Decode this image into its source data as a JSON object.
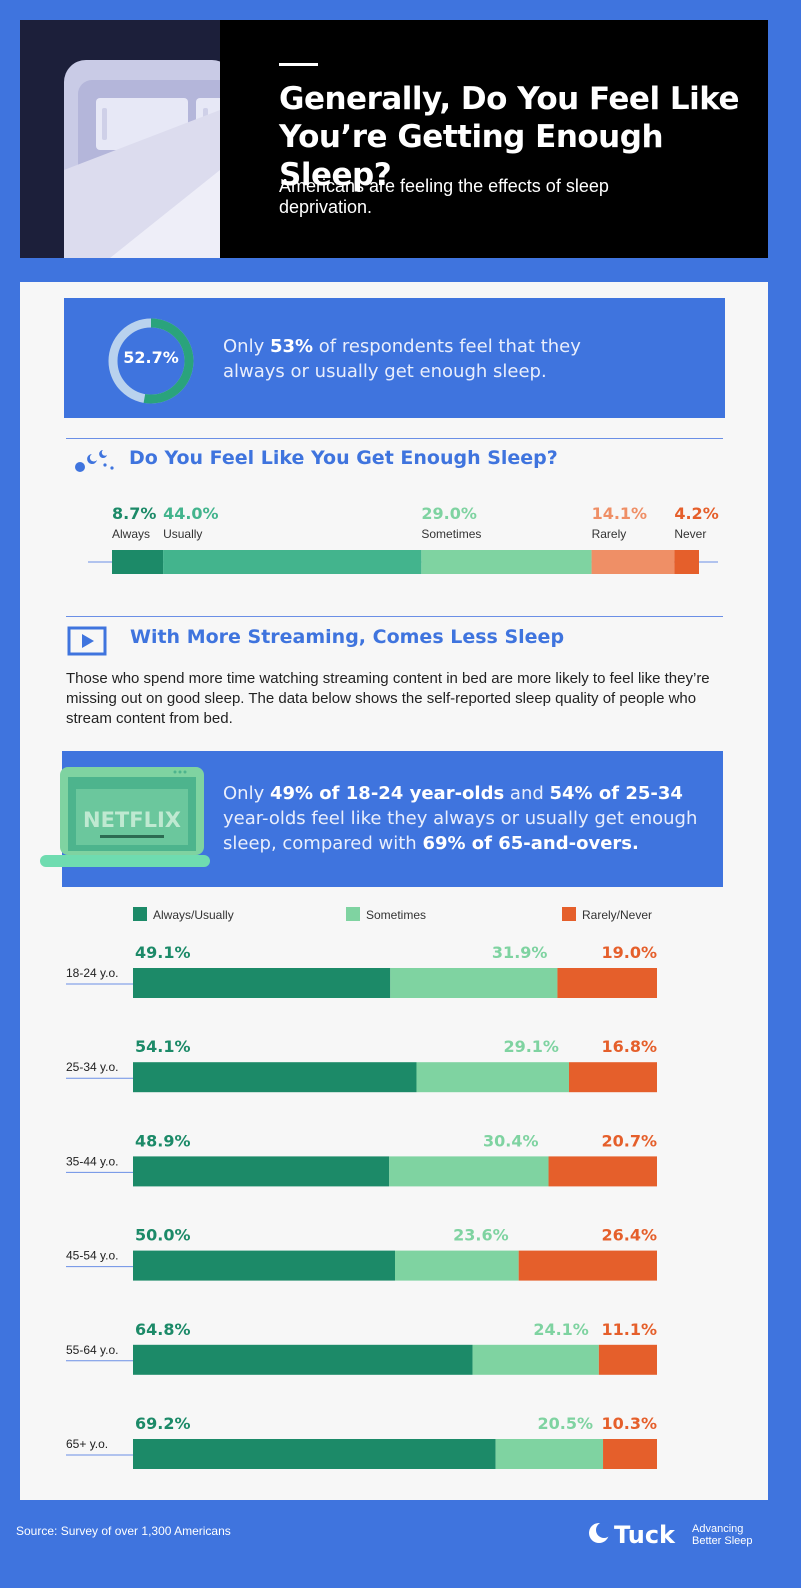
{
  "header": {
    "title_line1": "Generally, Do You Feel Like",
    "title_line2": "You’re Getting Enough Sleep?",
    "subtitle": "Americans are feeling the effects of sleep deprivation."
  },
  "callout1": {
    "donut_value": "52.7%",
    "donut_fraction": 0.527,
    "text_a": "Only ",
    "text_b": "53%",
    "text_c": " of respondents feel that they always or usually get enough sleep."
  },
  "section1": {
    "title": "Do You Feel Like You Get Enough Sleep?"
  },
  "section2": {
    "title": "With More Streaming, Comes Less Sleep",
    "body": "Those who spend more time watching streaming content in bed are more likely to feel like they’re missing out on good sleep. The data below shows the self-reported sleep quality of people who stream content from bed."
  },
  "callout2": {
    "logo_text": "NETFLIX",
    "p1": "Only ",
    "p2": "49% of 18-24 year-olds",
    "p3": " and ",
    "p4": "54% of 25-34",
    "p5": " year-olds feel like they always or usually get enough sleep, compared with ",
    "p6": "69% of 65-and-overs."
  },
  "chart_data": [
    {
      "type": "bar",
      "title": "Do You Feel Like You Get Enough Sleep?",
      "stacked": true,
      "orientation": "horizontal",
      "categories": [
        "Always",
        "Usually",
        "Sometimes",
        "Rarely",
        "Never"
      ],
      "values": [
        8.7,
        44.0,
        29.0,
        14.1,
        4.2
      ],
      "labels": [
        "8.7%",
        "44.0%",
        "29.0%",
        "14.1%",
        "4.2%"
      ],
      "colors": [
        "#1c8a68",
        "#43b48d",
        "#7fd3a1",
        "#ef8f66",
        "#e55f2b"
      ]
    },
    {
      "type": "bar",
      "stacked": true,
      "orientation": "horizontal",
      "legend_position": "top",
      "categories": [
        "18-24 y.o.",
        "25-34 y.o.",
        "35-44 y.o.",
        "45-54 y.o.",
        "55-64 y.o.",
        "65+ y.o."
      ],
      "series": [
        {
          "name": "Always/Usually",
          "color": "#1c8a68",
          "values": [
            49.1,
            54.1,
            48.9,
            50.0,
            64.8,
            69.2
          ],
          "labels": [
            "49.1%",
            "54.1%",
            "48.9%",
            "50.0%",
            "64.8%",
            "69.2%"
          ]
        },
        {
          "name": "Sometimes",
          "color": "#7fd3a1",
          "values": [
            31.9,
            29.1,
            30.4,
            23.6,
            24.1,
            20.5
          ],
          "labels": [
            "31.9%",
            "29.1%",
            "30.4%",
            "23.6%",
            "24.1%",
            "20.5%"
          ]
        },
        {
          "name": "Rarely/Never",
          "color": "#e55f2b",
          "values": [
            19.0,
            16.8,
            20.7,
            26.4,
            11.1,
            10.3
          ],
          "labels": [
            "19.0%",
            "16.8%",
            "20.7%",
            "26.4%",
            "11.1%",
            "10.3%"
          ]
        }
      ]
    }
  ],
  "colors": {
    "blue": "#3f74de",
    "dark_green": "#1c8a68",
    "light_green": "#7fd3a1",
    "orange": "#e55f2b"
  },
  "footer": {
    "source": "Source: Survey of over 1,300 Americans",
    "brand": "Tuck",
    "tagline1": "Advancing",
    "tagline2": "Better Sleep"
  }
}
